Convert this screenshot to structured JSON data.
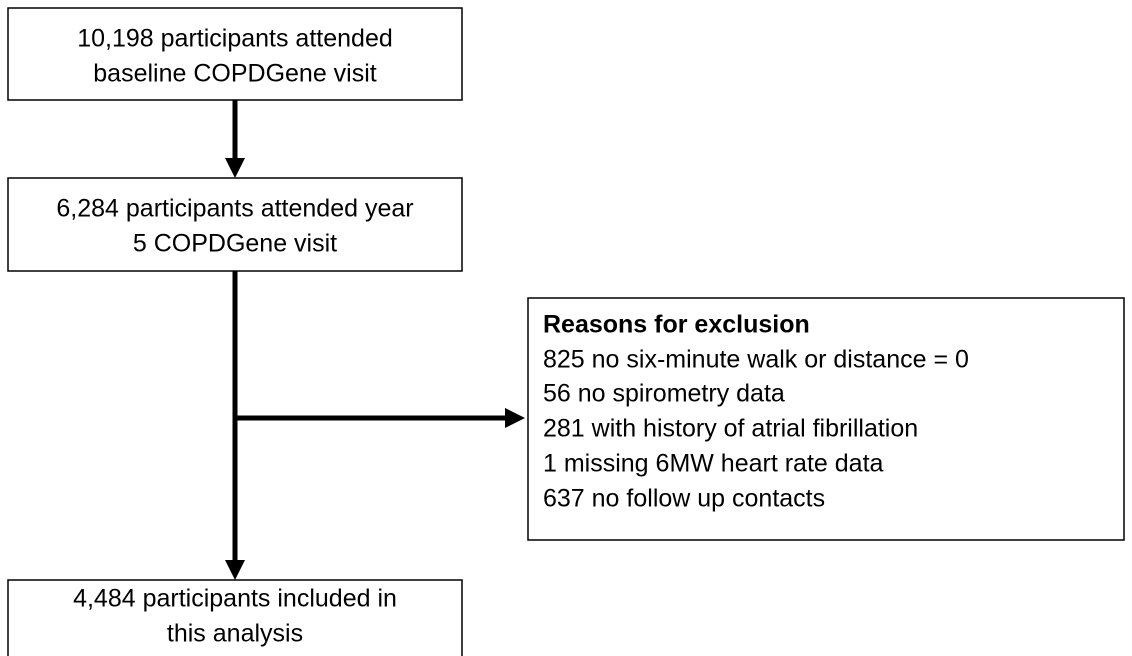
{
  "nodes": [
    {
      "lines": [
        "10,198 participants attended",
        "baseline COPDGene visit"
      ]
    },
    {
      "lines": [
        "6,284 participants attended year",
        "5 COPDGene visit"
      ]
    },
    {
      "lines": [
        "4,484 participants included in",
        "this analysis"
      ]
    }
  ],
  "exclusion": {
    "title": "Reasons for exclusion",
    "items": [
      "825 no six-minute walk or distance = 0",
      "56 no spirometry data",
      "281 with history of atrial fibrillation",
      "1 missing 6MW heart rate data",
      "637 no follow up contacts"
    ]
  }
}
